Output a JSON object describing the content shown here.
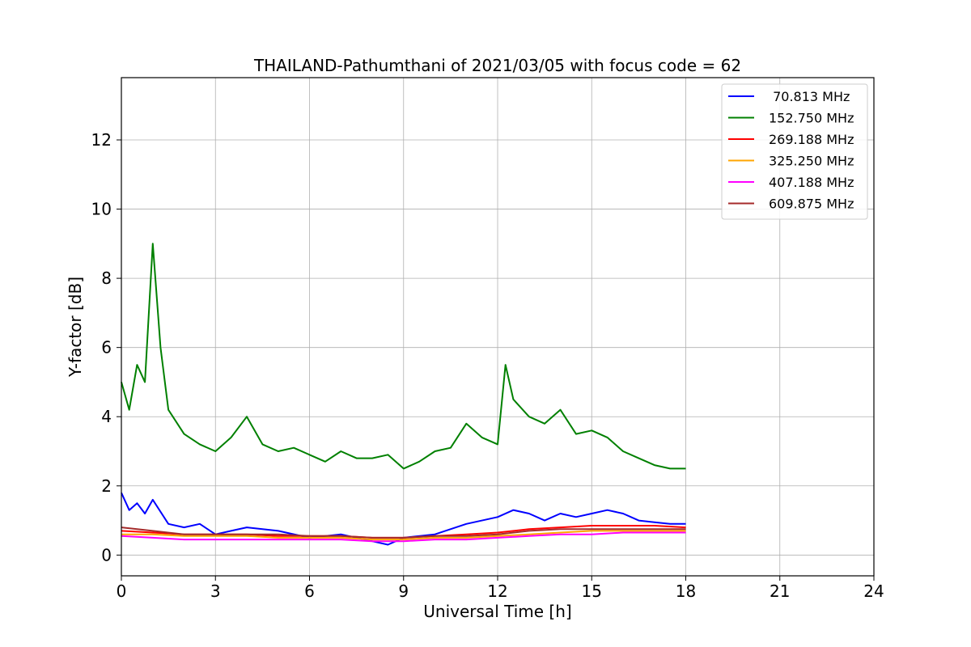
{
  "chart_data": {
    "type": "line",
    "title": "THAILAND-Pathumthani of 2021/03/05 with focus code = 62",
    "xlabel": "Universal Time [h]",
    "ylabel": "Y-factor [dB]",
    "xlim": [
      0,
      24
    ],
    "ylim": [
      -0.6,
      13.8
    ],
    "xticks": [
      "0",
      "3",
      "6",
      "9",
      "12",
      "15",
      "18",
      "21",
      "24"
    ],
    "yticks": [
      "0",
      "2",
      "4",
      "6",
      "8",
      "10",
      "12"
    ],
    "grid": true,
    "legend_position": "top-right",
    "series": [
      {
        "name": " 70.813 MHz",
        "color": "#0000ff",
        "x": [
          0,
          0.25,
          0.5,
          0.75,
          1,
          1.5,
          2,
          2.5,
          3,
          3.5,
          4,
          5,
          6,
          7,
          8,
          8.5,
          9,
          10,
          11,
          12,
          12.5,
          13,
          13.5,
          14,
          14.5,
          15,
          15.5,
          16,
          16.5,
          17,
          17.5,
          18
        ],
        "values": [
          1.8,
          1.3,
          1.5,
          1.2,
          1.6,
          0.9,
          0.8,
          0.9,
          0.6,
          0.7,
          0.8,
          0.7,
          0.5,
          0.6,
          0.4,
          0.3,
          0.5,
          0.6,
          0.9,
          1.1,
          1.3,
          1.2,
          1.0,
          1.2,
          1.1,
          1.2,
          1.3,
          1.2,
          1.0,
          0.95,
          0.9,
          0.9
        ]
      },
      {
        "name": "152.750 MHz",
        "color": "#008000",
        "x": [
          0,
          0.25,
          0.5,
          0.75,
          1,
          1.25,
          1.5,
          2,
          2.5,
          3,
          3.5,
          4,
          4.5,
          5,
          5.5,
          6,
          6.5,
          7,
          7.5,
          8,
          8.5,
          9,
          9.5,
          10,
          10.5,
          11,
          11.5,
          12,
          12.25,
          12.5,
          13,
          13.5,
          14,
          14.5,
          15,
          15.5,
          16,
          16.5,
          17,
          17.5,
          18
        ],
        "values": [
          5.0,
          4.2,
          5.5,
          5.0,
          9.0,
          6.0,
          4.2,
          3.5,
          3.2,
          3.0,
          3.4,
          4.0,
          3.2,
          3.0,
          3.1,
          2.9,
          2.7,
          3.0,
          2.8,
          2.8,
          2.9,
          2.5,
          2.7,
          3.0,
          3.1,
          3.8,
          3.4,
          3.2,
          5.5,
          4.5,
          4.0,
          3.8,
          4.2,
          3.5,
          3.6,
          3.4,
          3.0,
          2.8,
          2.6,
          2.5,
          2.5
        ]
      },
      {
        "name": "269.188 MHz",
        "color": "#ff0000",
        "x": [
          0,
          1,
          2,
          3,
          4,
          5,
          6,
          7,
          8,
          9,
          10,
          11,
          12,
          13,
          14,
          15,
          16,
          17,
          18
        ],
        "values": [
          0.7,
          0.65,
          0.6,
          0.6,
          0.6,
          0.55,
          0.55,
          0.55,
          0.5,
          0.5,
          0.55,
          0.6,
          0.65,
          0.75,
          0.8,
          0.85,
          0.85,
          0.85,
          0.8
        ]
      },
      {
        "name": "325.250 MHz",
        "color": "#ffa500",
        "x": [
          0,
          1,
          2,
          3,
          4,
          5,
          6,
          7,
          8,
          9,
          10,
          11,
          12,
          13,
          14,
          15,
          16,
          17,
          18
        ],
        "values": [
          0.6,
          0.6,
          0.55,
          0.55,
          0.55,
          0.5,
          0.5,
          0.5,
          0.45,
          0.45,
          0.5,
          0.5,
          0.55,
          0.6,
          0.65,
          0.7,
          0.7,
          0.7,
          0.7
        ]
      },
      {
        "name": "407.188 MHz",
        "color": "#ff00ff",
        "x": [
          0,
          1,
          2,
          3,
          4,
          5,
          6,
          7,
          8,
          9,
          10,
          11,
          12,
          13,
          14,
          15,
          16,
          17,
          18
        ],
        "values": [
          0.55,
          0.5,
          0.45,
          0.45,
          0.45,
          0.45,
          0.45,
          0.45,
          0.4,
          0.4,
          0.45,
          0.45,
          0.5,
          0.55,
          0.6,
          0.6,
          0.65,
          0.65,
          0.65
        ]
      },
      {
        "name": "609.875 MHz",
        "color": "#a52a2a",
        "x": [
          0,
          1,
          2,
          3,
          4,
          5,
          6,
          7,
          8,
          9,
          10,
          11,
          12,
          13,
          14,
          15,
          16,
          17,
          18
        ],
        "values": [
          0.8,
          0.7,
          0.6,
          0.6,
          0.6,
          0.6,
          0.55,
          0.55,
          0.5,
          0.5,
          0.55,
          0.55,
          0.6,
          0.7,
          0.75,
          0.75,
          0.75,
          0.75,
          0.75
        ]
      }
    ]
  }
}
